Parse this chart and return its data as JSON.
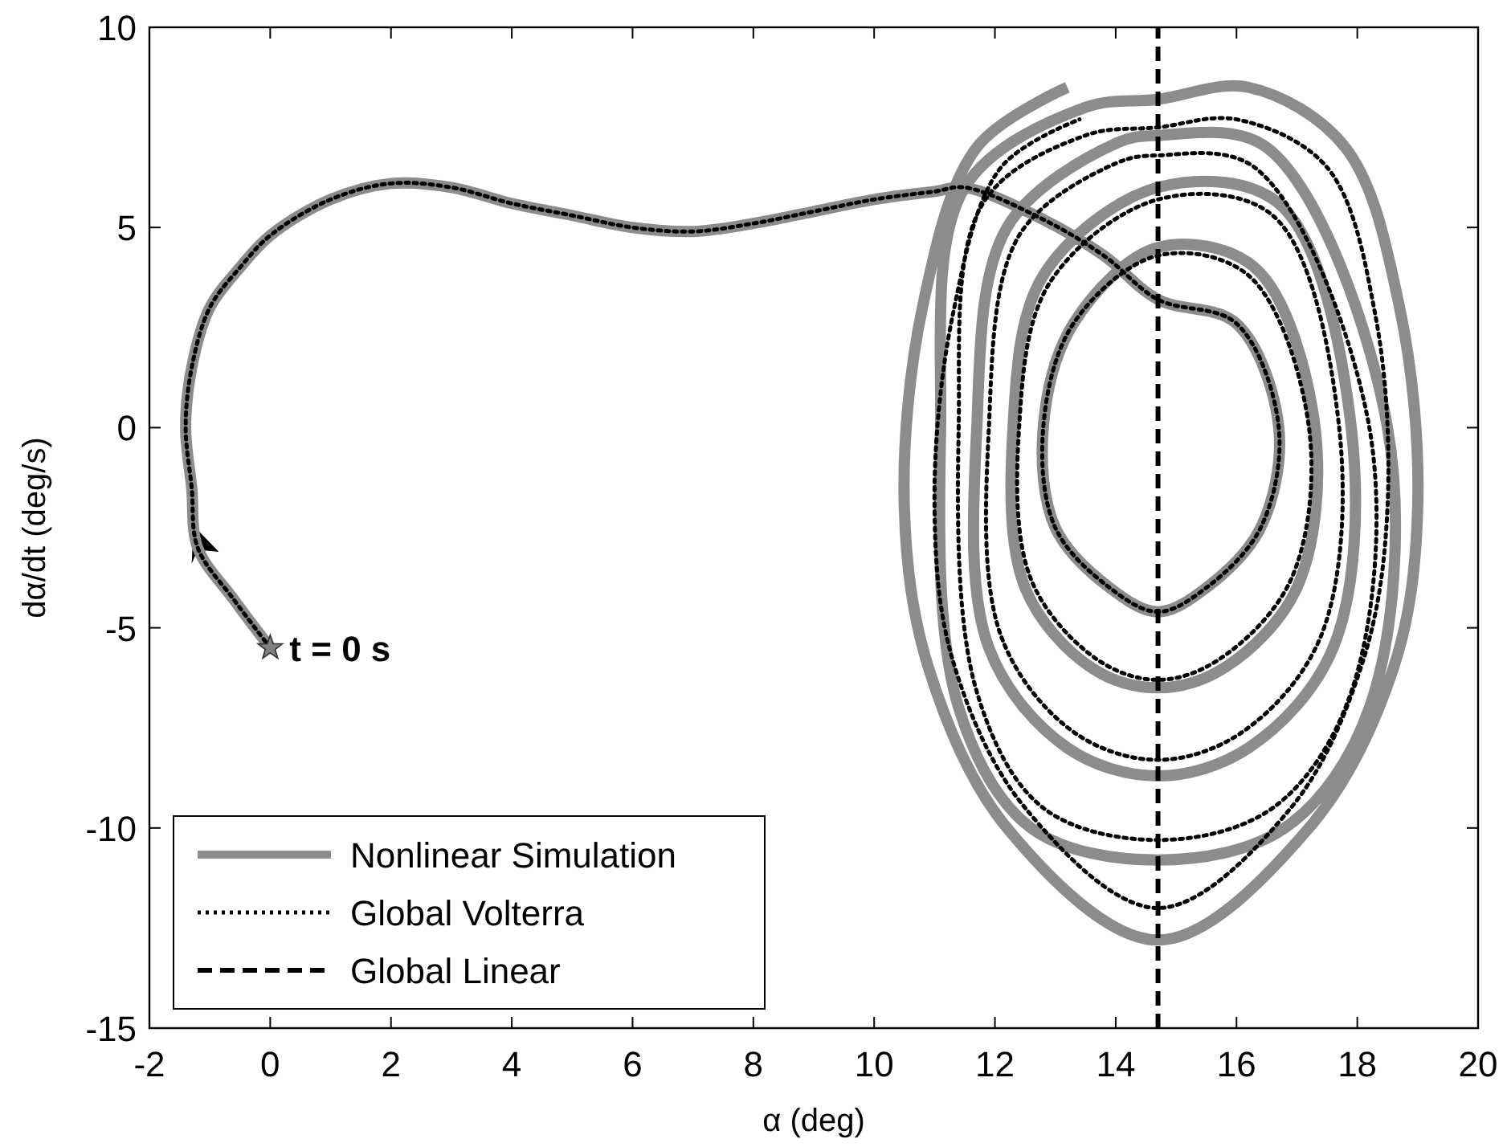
{
  "chart_data": {
    "type": "line",
    "xlabel": "α (deg)",
    "ylabel": "dα/dt (deg/s)",
    "xlim": [
      -2,
      20
    ],
    "ylim": [
      -15,
      10
    ],
    "xticks": [
      -2,
      0,
      2,
      4,
      6,
      8,
      10,
      12,
      14,
      16,
      18,
      20
    ],
    "yticks": [
      -15,
      -10,
      -5,
      0,
      5,
      10
    ],
    "grid": false,
    "legend": "bottom left",
    "annotations": [
      {
        "text": "t = 0 s",
        "x": 0,
        "y": -5.5
      }
    ],
    "series": [
      {
        "name": "Nonlinear Simulation",
        "color": "#8c8c8c",
        "line_style": "solid",
        "x": [
          0,
          -0.6,
          -1.2,
          -1.3,
          -1.4,
          -1.3,
          -1,
          -0.5,
          0,
          1,
          2,
          3,
          4,
          5,
          6,
          7,
          8,
          9,
          10,
          11,
          11.5,
          12.8,
          13.8,
          14.7,
          16,
          16.7,
          16.4,
          15.5,
          14.7,
          13.9,
          13,
          12.8,
          13.3,
          14.7,
          16.3,
          17.3,
          17,
          15.8,
          14.7,
          13.6,
          12.5,
          12.3,
          12.8,
          14.7,
          16.7,
          17.9,
          17.6,
          16.2,
          14.7,
          13.2,
          11.9,
          11.7,
          12.2,
          14,
          14.7,
          16.5,
          18.5,
          18.2,
          16.8,
          14.7,
          12.6,
          11.4,
          11.1,
          11.5,
          13.5,
          14.7,
          16.2,
          17.8,
          18.7,
          19,
          18.6,
          17.2,
          14.7,
          12.2,
          10.9,
          10.5,
          10.8,
          11.7,
          13.2
        ],
        "values": [
          -5.5,
          -4.3,
          -3,
          -1.5,
          0,
          1.5,
          3,
          4,
          4.8,
          5.7,
          6.1,
          6,
          5.6,
          5.3,
          5,
          4.9,
          5.1,
          5.4,
          5.7,
          5.9,
          6,
          5.2,
          4.3,
          3.2,
          2.6,
          0,
          -2.5,
          -4,
          -4.6,
          -4,
          -2.5,
          0,
          2.6,
          4.5,
          4,
          0,
          -4,
          -6,
          -6.5,
          -6,
          -4,
          0,
          3.8,
          6,
          5.6,
          0,
          -5.5,
          -8,
          -8.7,
          -8,
          -5.5,
          0,
          5,
          7.1,
          7.3,
          7,
          0,
          -7,
          -10,
          -10.8,
          -10,
          -7,
          0,
          6,
          8,
          8.2,
          8.5,
          7,
          3,
          -2,
          -6,
          -10,
          -12.8,
          -10,
          -6,
          -2,
          3,
          7,
          8.5
        ]
      },
      {
        "name": "Global Volterra",
        "color": "#000000",
        "line_style": "dotted",
        "x": [
          0,
          -0.6,
          -1.2,
          -1.3,
          -1.4,
          -1.3,
          -1,
          -0.5,
          0,
          1,
          2,
          3,
          4,
          5,
          6,
          7,
          8,
          9,
          10,
          11,
          11.5,
          12.8,
          13.8,
          14.7,
          16,
          16.7,
          16.4,
          15.5,
          14.7,
          13.9,
          13,
          12.8,
          13.3,
          14.7,
          16.2,
          17.2,
          16.9,
          15.7,
          14.7,
          13.7,
          12.6,
          12.4,
          12.9,
          14.7,
          16.6,
          17.7,
          17.4,
          16.1,
          14.7,
          13.3,
          12.1,
          11.9,
          12.4,
          14,
          14.7,
          16.3,
          18.2,
          17.9,
          16.6,
          14.7,
          12.8,
          11.7,
          11.4,
          11.8,
          13.5,
          14.7,
          16,
          17.5,
          18.3,
          18.5,
          18.1,
          16.9,
          14.7,
          12.5,
          11.3,
          11,
          11.3,
          12.1,
          13.4
        ],
        "values": [
          -5.5,
          -4.3,
          -3,
          -1.5,
          0,
          1.5,
          3,
          4,
          4.8,
          5.7,
          6.1,
          6,
          5.6,
          5.3,
          5,
          4.9,
          5.1,
          5.4,
          5.7,
          5.9,
          6,
          5.2,
          4.3,
          3.2,
          2.6,
          0,
          -2.5,
          -4,
          -4.6,
          -4,
          -2.5,
          0,
          2.6,
          4.3,
          3.8,
          0,
          -3.8,
          -5.8,
          -6.3,
          -5.8,
          -3.8,
          0,
          3.6,
          5.7,
          5.3,
          0,
          -5.2,
          -7.6,
          -8.3,
          -7.6,
          -5.2,
          0,
          4.8,
          6.6,
          6.8,
          6.5,
          0,
          -6.6,
          -9.5,
          -10.3,
          -9.5,
          -6.6,
          0,
          5.6,
          7.3,
          7.5,
          7.7,
          6.5,
          2.8,
          -2,
          -5.8,
          -9.5,
          -12,
          -9.5,
          -5.8,
          -2,
          2.8,
          6.5,
          7.7
        ]
      },
      {
        "name": "Global Linear",
        "color": "#000000",
        "line_style": "dashed",
        "x": [
          14.7,
          14.7
        ],
        "values": [
          -15,
          10
        ]
      },
      {
        "type": "scatter",
        "color": "#808080",
        "marker": "star",
        "x": [
          0
        ],
        "values": [
          -5.5
        ]
      }
    ]
  }
}
